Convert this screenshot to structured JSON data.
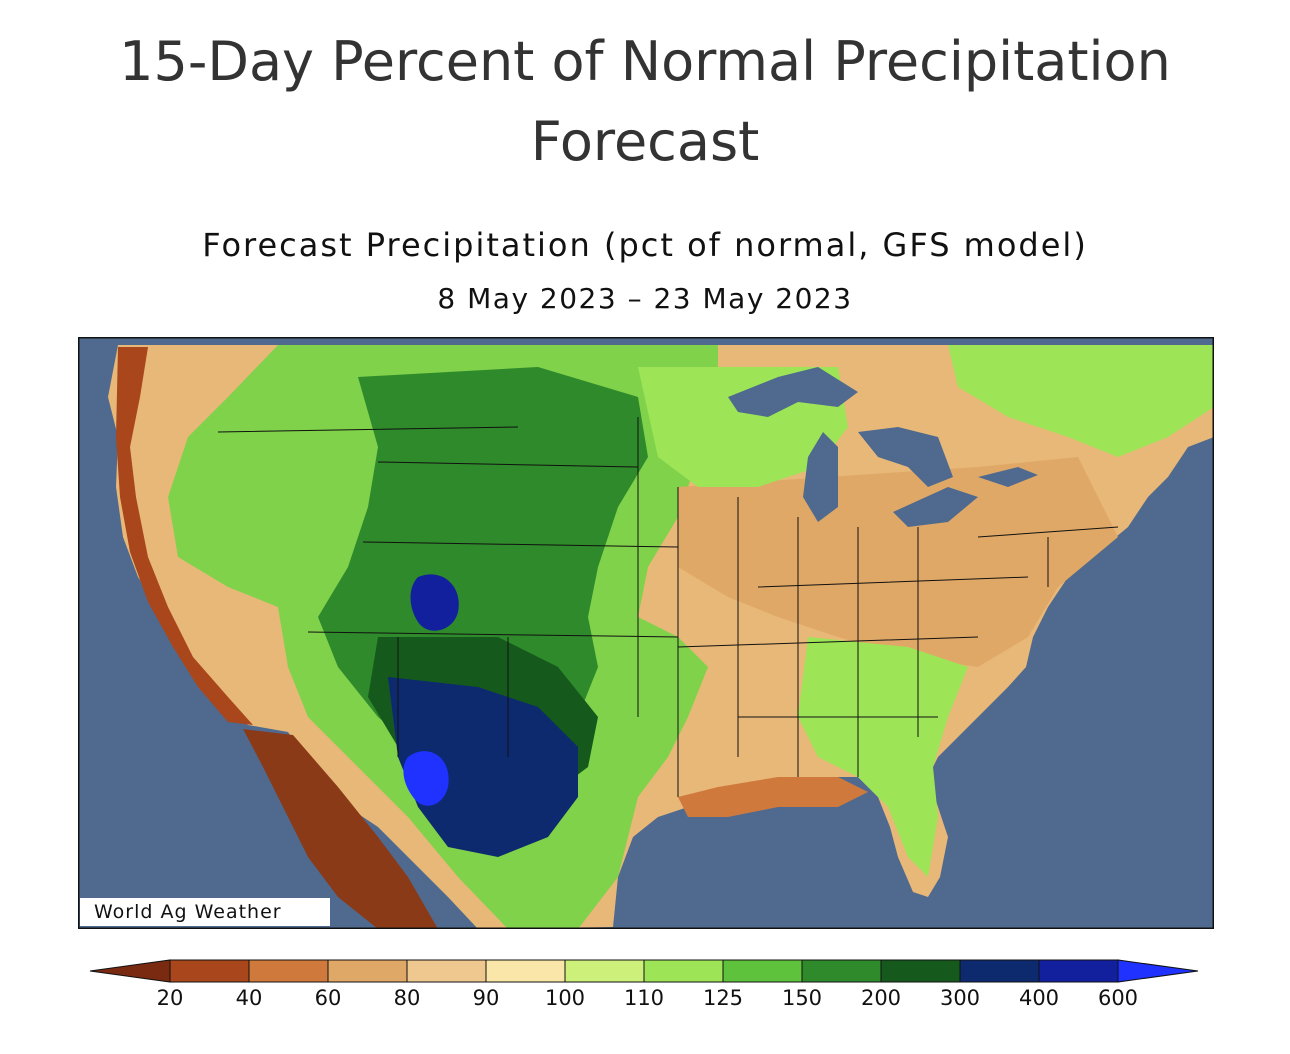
{
  "page_title": "15-Day Percent of Normal Precipitation Forecast",
  "map": {
    "title": "Forecast Precipitation (pct of normal, GFS model)",
    "date_range": "8 May 2023 – 23 May 2023",
    "watermark": "World Ag Weather",
    "region": "Contiguous United States"
  },
  "legend": {
    "ticks": [
      "20",
      "40",
      "60",
      "80",
      "90",
      "100",
      "110",
      "125",
      "150",
      "200",
      "300",
      "400",
      "600"
    ],
    "colors": [
      "#7a2a10",
      "#a9461c",
      "#cf7a3c",
      "#e0a866",
      "#eec88e",
      "#f9e6a8",
      "#cdf07a",
      "#9de556",
      "#5fc23c",
      "#2f8a2b",
      "#155a1c",
      "#0d2a6e",
      "#12209e",
      "#1f32ff"
    ]
  }
}
